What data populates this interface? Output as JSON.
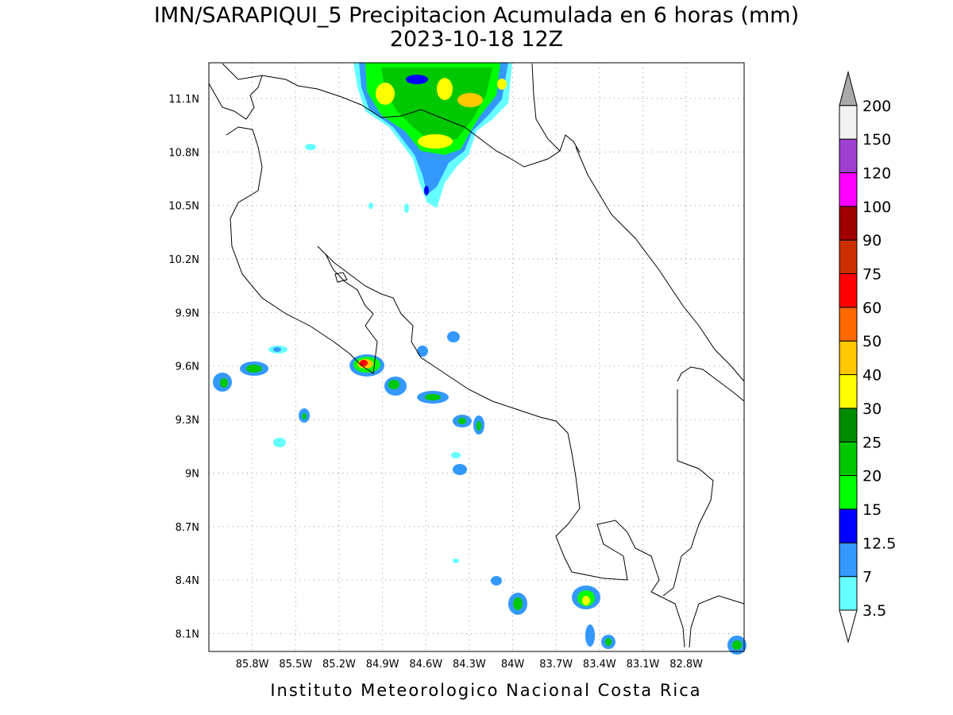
{
  "map": {
    "title": "IMN/SARAPIQUI_5 Precipitacion Acumulada en 6 horas (mm)",
    "subtitle": "2023-10-18 12Z",
    "footer": "Instituto Meteorologico Nacional Costa Rica",
    "xlim": [
      -86.1,
      -82.4
    ],
    "ylim": [
      8.0,
      11.3
    ],
    "xticks": [
      {
        "value": -85.8,
        "label": "85.8W"
      },
      {
        "value": -85.5,
        "label": "85.5W"
      },
      {
        "value": -85.2,
        "label": "85.2W"
      },
      {
        "value": -84.9,
        "label": "84.9W"
      },
      {
        "value": -84.6,
        "label": "84.6W"
      },
      {
        "value": -84.3,
        "label": "84.3W"
      },
      {
        "value": -84.0,
        "label": "84W"
      },
      {
        "value": -83.7,
        "label": "83.7W"
      },
      {
        "value": -83.4,
        "label": "83.4W"
      },
      {
        "value": -83.1,
        "label": "83.1W"
      },
      {
        "value": -82.8,
        "label": "82.8W"
      }
    ],
    "yticks": [
      {
        "value": 8.1,
        "label": "8.1N"
      },
      {
        "value": 8.4,
        "label": "8.4N"
      },
      {
        "value": 8.7,
        "label": "8.7N"
      },
      {
        "value": 9.0,
        "label": "9N"
      },
      {
        "value": 9.3,
        "label": "9.3N"
      },
      {
        "value": 9.6,
        "label": "9.6N"
      },
      {
        "value": 9.9,
        "label": "9.9N"
      },
      {
        "value": 10.2,
        "label": "10.2N"
      },
      {
        "value": 10.5,
        "label": "10.5N"
      },
      {
        "value": 10.8,
        "label": "10.8N"
      },
      {
        "value": 11.1,
        "label": "11.1N"
      }
    ],
    "grid": true,
    "colorbar": {
      "levels": [
        3.5,
        7,
        12.5,
        15,
        20,
        25,
        30,
        40,
        50,
        60,
        75,
        90,
        100,
        120,
        150,
        200
      ],
      "colors": [
        "#66ffff",
        "#3399ff",
        "#0000ff",
        "#00ff00",
        "#00c800",
        "#008c00",
        "#ffff00",
        "#ffc800",
        "#ff6a00",
        "#ff0000",
        "#cc3000",
        "#a00000",
        "#ff00ff",
        "#a040d0",
        "#f2f2f2"
      ],
      "under_color": "#ffffff",
      "over_color": "#aaaaaa"
    }
  }
}
